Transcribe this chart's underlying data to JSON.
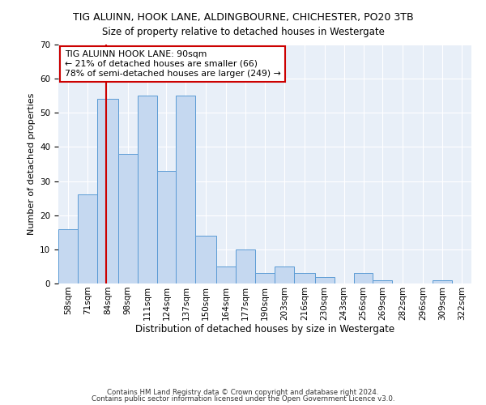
{
  "title": "TIG ALUINN, HOOK LANE, ALDINGBOURNE, CHICHESTER, PO20 3TB",
  "subtitle": "Size of property relative to detached houses in Westergate",
  "xlabel": "Distribution of detached houses by size in Westergate",
  "ylabel": "Number of detached properties",
  "bin_labels": [
    "58sqm",
    "71sqm",
    "84sqm",
    "98sqm",
    "111sqm",
    "124sqm",
    "137sqm",
    "150sqm",
    "164sqm",
    "177sqm",
    "190sqm",
    "203sqm",
    "216sqm",
    "230sqm",
    "243sqm",
    "256sqm",
    "269sqm",
    "282sqm",
    "296sqm",
    "309sqm",
    "322sqm"
  ],
  "bin_edges": [
    58,
    71,
    84,
    98,
    111,
    124,
    137,
    150,
    164,
    177,
    190,
    203,
    216,
    230,
    243,
    256,
    269,
    282,
    296,
    309,
    322
  ],
  "bar_heights": [
    16,
    26,
    54,
    38,
    55,
    33,
    55,
    14,
    5,
    10,
    3,
    5,
    3,
    2,
    0,
    3,
    1,
    0,
    0,
    1,
    0
  ],
  "bar_color": "#c5d8f0",
  "bar_edge_color": "#5b9bd5",
  "vline_x": 90,
  "vline_color": "#cc0000",
  "annotation_title": "TIG ALUINN HOOK LANE: 90sqm",
  "annotation_line1": "← 21% of detached houses are smaller (66)",
  "annotation_line2": "78% of semi-detached houses are larger (249) →",
  "annotation_box_facecolor": "#ffffff",
  "annotation_box_edgecolor": "#cc0000",
  "ylim": [
    0,
    70
  ],
  "yticks": [
    0,
    10,
    20,
    30,
    40,
    50,
    60,
    70
  ],
  "footer1": "Contains HM Land Registry data © Crown copyright and database right 2024.",
  "footer2": "Contains public sector information licensed under the Open Government Licence v3.0.",
  "bg_color": "#ffffff",
  "plot_bg_color": "#e8eff8",
  "grid_color": "#ffffff",
  "title_fontsize": 9,
  "subtitle_fontsize": 8.5,
  "ylabel_fontsize": 8,
  "xlabel_fontsize": 8.5,
  "tick_fontsize": 7.5,
  "annotation_fontsize": 7.8,
  "footer_fontsize": 6.2
}
